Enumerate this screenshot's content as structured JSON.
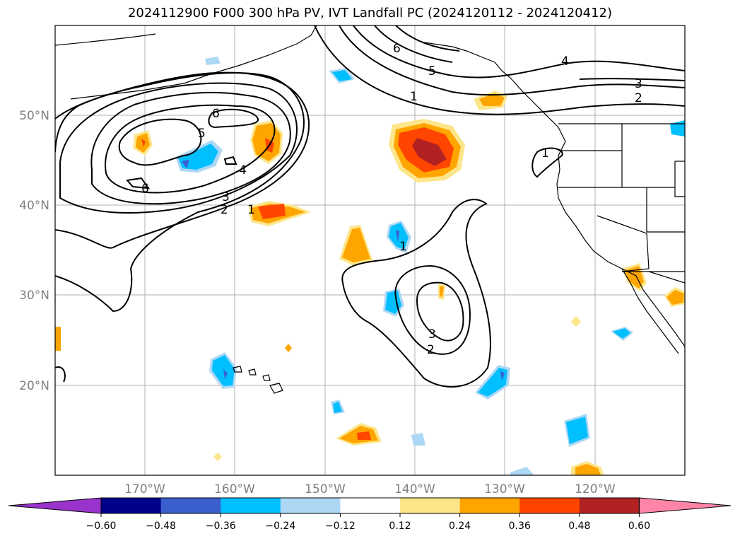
{
  "title": "2024112900 F000 300 hPa PV, IVT Landfall PC (2024120112 - 2024120412)",
  "map": {
    "lat_labels": [
      "50°N",
      "40°N",
      "30°N",
      "20°N"
    ],
    "lon_labels": [
      "170°W",
      "160°W",
      "150°W",
      "140°W",
      "130°W",
      "120°W"
    ],
    "lat_range": [
      10,
      60
    ],
    "lon_range": [
      -180,
      -110
    ],
    "grid": true,
    "contour_labels": [
      "6",
      "5",
      "4",
      "3",
      "2",
      "1",
      "6",
      "5",
      "4",
      "3",
      "2",
      "1",
      "1",
      "3",
      "2",
      "6",
      "1"
    ]
  },
  "colorbar": {
    "ticks": [
      "−0.60",
      "−0.48",
      "−0.36",
      "−0.24",
      "−0.12",
      "0.12",
      "0.24",
      "0.36",
      "0.48",
      "0.60"
    ],
    "colors": [
      "#9933cc",
      "#00008b",
      "#3a5fcd",
      "#00bfff",
      "#add8f5",
      "#ffffff",
      "#fde68a",
      "#ffa500",
      "#ff4500",
      "#b22222",
      "#ff85a8"
    ],
    "extend": "both"
  }
}
